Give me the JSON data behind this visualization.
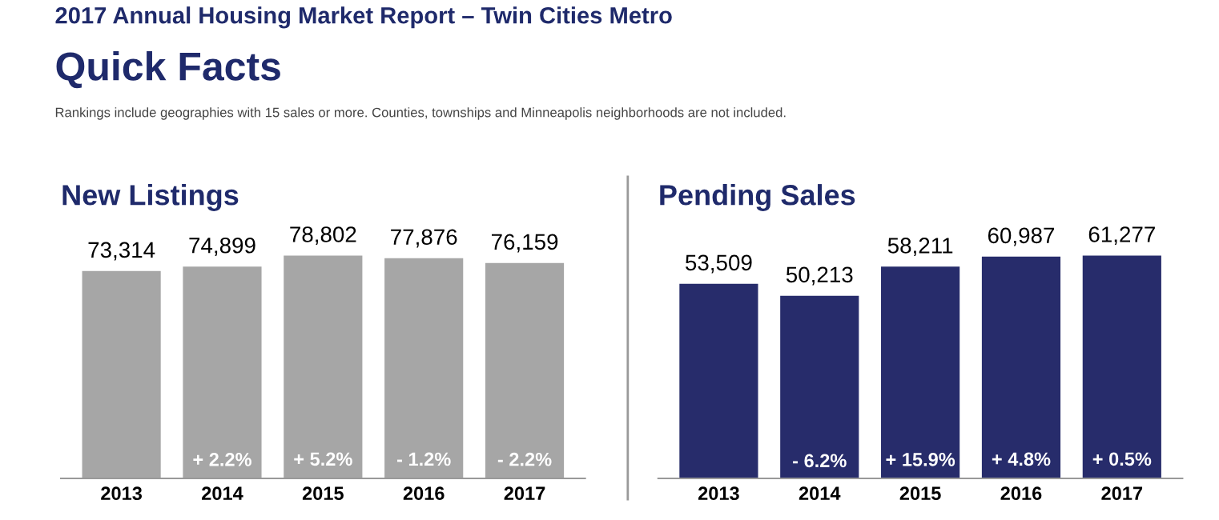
{
  "chart_data": [
    {
      "type": "other",
      "title": "2017 Annual Housing Market Report – Twin Cities Metro",
      "subtitle": "Quick Facts",
      "annotations": [
        "Rankings include geographies with 15 sales or more. Counties, townships and Minneapolis neighborhoods are not included."
      ]
    },
    {
      "type": "bar",
      "title": "New Listings",
      "categories": [
        "2013",
        "2014",
        "2015",
        "2016",
        "2017"
      ],
      "values": [
        73314,
        74899,
        78802,
        77876,
        76159
      ],
      "color": "#a6a6a6",
      "grid": false,
      "value_labels": [
        "73,314",
        "74,899",
        "78,802",
        "77,876",
        "76,159"
      ],
      "annotations": [
        "+ 2.2%",
        "+ 5.2%",
        "- 1.2%",
        "- 2.2%"
      ]
    },
    {
      "type": "bar",
      "title": "Pending Sales",
      "categories": [
        "2013",
        "2014",
        "2015",
        "2016",
        "2017"
      ],
      "values": [
        53509,
        50213,
        58211,
        60987,
        61277
      ],
      "color": "#272c6b",
      "grid": false,
      "value_labels": [
        "53,509",
        "50,213",
        "58,211",
        "60,987",
        "61,277"
      ],
      "annotations": [
        "- 6.2%",
        "+ 15.9%",
        "+ 4.8%",
        "+ 0.5%"
      ]
    }
  ]
}
